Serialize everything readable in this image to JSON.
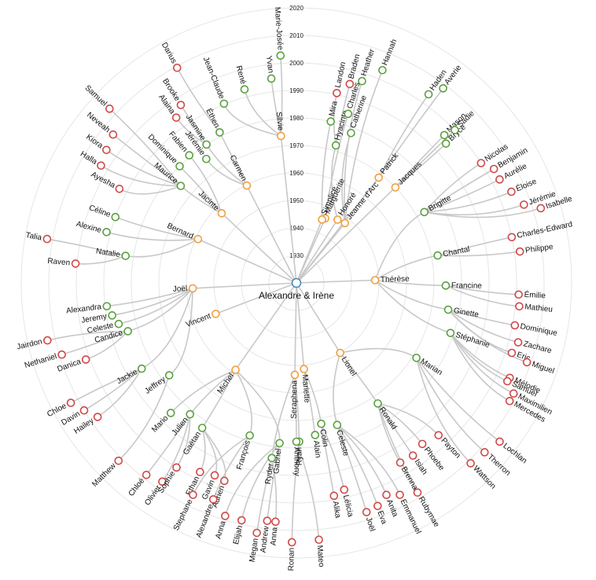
{
  "years": [
    "1930",
    "1940",
    "1950",
    "1960",
    "1970",
    "1980",
    "1990",
    "2000",
    "2010",
    "2020"
  ],
  "colors": {
    "root": "#4a8ab8",
    "gen1": "#f0a040",
    "gen2": "#5aa040",
    "gen3": "#d04848",
    "link": "#c8c8c8"
  },
  "tree": {
    "name": "Alexandre & Irène",
    "children": [
      {
        "name": "Silvie",
        "children": [
          {
            "name": "Jean-Claude",
            "children": []
          },
          {
            "name": "René",
            "children": []
          },
          {
            "name": "Yvan",
            "children": []
          },
          {
            "name": "Marie-Josée",
            "children": []
          }
        ]
      },
      {
        "name": "Carmen",
        "children": [
          {
            "name": "Éthen",
            "children": [
              {
                "name": "Darius"
              }
            ]
          },
          {
            "name": "Jasmine",
            "children": [
              {
                "name": "Brooke"
              },
              {
                "name": "Alaina"
              }
            ]
          },
          {
            "name": "Jérémie",
            "children": []
          }
        ]
      },
      {
        "name": "Jacinte",
        "children": [
          {
            "name": "Fabien",
            "children": []
          },
          {
            "name": "Dominique",
            "children": []
          },
          {
            "name": "Maurice",
            "children": [
              {
                "name": "Samuel"
              },
              {
                "name": "Neveah"
              },
              {
                "name": "Kiora"
              },
              {
                "name": "Halla"
              },
              {
                "name": "Ayesha"
              }
            ]
          }
        ]
      },
      {
        "name": "Bernard",
        "children": [
          {
            "name": "Céline",
            "children": []
          },
          {
            "name": "Alexine",
            "children": []
          },
          {
            "name": "Natalie",
            "children": [
              {
                "name": "Talia"
              },
              {
                "name": "Raven"
              }
            ]
          }
        ]
      },
      {
        "name": "Joël",
        "children": [
          {
            "name": "Alexandra",
            "children": []
          },
          {
            "name": "Jeremy",
            "children": []
          },
          {
            "name": "Celeste",
            "children": []
          },
          {
            "name": "Candice",
            "children": [
              {
                "name": "Jairdon"
              },
              {
                "name": "Nethaniel"
              },
              {
                "name": "Danica"
              }
            ]
          },
          {
            "name": "Jackie",
            "children": [
              {
                "name": "Chloe"
              },
              {
                "name": "Davin"
              },
              {
                "name": "Hailey"
              }
            ]
          },
          {
            "name": "Jeffrey",
            "children": [
              {
                "name": "Matthew"
              }
            ]
          }
        ]
      },
      {
        "name": "Vincent",
        "children": []
      },
      {
        "name": "Michel",
        "children": [
          {
            "name": "Mario",
            "children": []
          },
          {
            "name": "Julien",
            "children": [
              {
                "name": "Chloé"
              },
              {
                "name": "Olivier"
              },
              {
                "name": "Sophie"
              }
            ]
          },
          {
            "name": "Gaëtan",
            "children": [
              {
                "name": "Ethan"
              },
              {
                "name": "Gavin"
              },
              {
                "name": "Adrien"
              }
            ]
          },
          {
            "name": "François",
            "children": [
              {
                "name": "Stephane"
              },
              {
                "name": "Alexandre"
              }
            ]
          },
          {
            "name": "Gabriel",
            "children": [
              {
                "name": "Anna"
              },
              {
                "name": "Elijah"
              },
              {
                "name": "Andrew"
              }
            ]
          }
        ]
      },
      {
        "name": "Seraphena",
        "children": [
          {
            "name": "Ryder",
            "children": [
              {
                "name": "Megan"
              },
              {
                "name": "Anna"
              }
            ]
          },
          {
            "name": "Ryan",
            "children": [
              {
                "name": "Ronan"
              }
            ]
          },
          {
            "name": "Anthony",
            "children": [
              {
                "name": "Mateo"
              }
            ]
          }
        ]
      },
      {
        "name": "Mariette",
        "children": [
          {
            "name": "Alain",
            "children": []
          },
          {
            "name": "Colin",
            "children": [
              {
                "name": "Alika"
              },
              {
                "name": "Lélicia"
              }
            ]
          }
        ]
      },
      {
        "name": "Lionel",
        "children": [
          {
            "name": "Celeste",
            "children": [
              {
                "name": "Joël"
              },
              {
                "name": "Eva"
              },
              {
                "name": "Anita"
              },
              {
                "name": "Emmanuel"
              }
            ]
          },
          {
            "name": "Ronald",
            "children": [
              {
                "name": "Rubymae"
              },
              {
                "name": "Brenna"
              },
              {
                "name": "Isiah"
              },
              {
                "name": "Phoebe"
              },
              {
                "name": "Payton"
              }
            ]
          },
          {
            "name": "Marian",
            "children": [
              {
                "name": "Lochlan"
              },
              {
                "name": "Therron"
              },
              {
                "name": "Wattson"
              }
            ]
          }
        ]
      },
      {
        "name": "Thérèse",
        "children": [
          {
            "name": "Brigitte",
            "children": [
              {
                "name": "Nicolas"
              },
              {
                "name": "Benjamin"
              },
              {
                "name": "Aurélie"
              },
              {
                "name": "Éloise"
              },
              {
                "name": "Jérémie"
              },
              {
                "name": "Isabelle"
              }
            ]
          },
          {
            "name": "Chantal",
            "children": [
              {
                "name": "Charles-Edward"
              },
              {
                "name": "Philippe"
              }
            ]
          },
          {
            "name": "Francine",
            "children": [
              {
                "name": "Émilie"
              },
              {
                "name": "Mathieu"
              }
            ]
          },
          {
            "name": "Ginette",
            "children": [
              {
                "name": "Dominique"
              },
              {
                "name": "Zachare"
              },
              {
                "name": "Eric"
              },
              {
                "name": "Miguel"
              }
            ]
          },
          {
            "name": "Stéphanie",
            "children": [
              {
                "name": "Mélodie"
              },
              {
                "name": "Samuel"
              },
              {
                "name": "Maximilien"
              },
              {
                "name": "Mercedes"
              }
            ]
          }
        ]
      },
      {
        "name": "Jacques",
        "children": [
          {
            "name": "Bryce",
            "children": []
          },
          {
            "name": "Mason",
            "children": []
          },
          {
            "name": "Sadie",
            "children": []
          }
        ]
      },
      {
        "name": "Patrick",
        "children": [
          {
            "name": "Haden",
            "children": []
          },
          {
            "name": "Averie",
            "children": []
          }
        ]
      },
      {
        "name": "Jeanne d'Arc",
        "children": [
          {
            "name": "Catherine",
            "children": []
          },
          {
            "name": "Heather",
            "children": []
          },
          {
            "name": "Hannah",
            "children": []
          }
        ]
      },
      {
        "name": "Honoré",
        "children": [
          {
            "name": "Hyacinte",
            "children": [
              {
                "name": "Landon"
              },
              {
                "name": "Braden"
              }
            ]
          }
        ]
      },
      {
        "name": "Marguerite",
        "children": [
          {
            "name": "Charles",
            "children": []
          }
        ]
      },
      {
        "name": "Simplice",
        "children": [
          {
            "name": "Mira",
            "children": []
          }
        ]
      }
    ]
  }
}
